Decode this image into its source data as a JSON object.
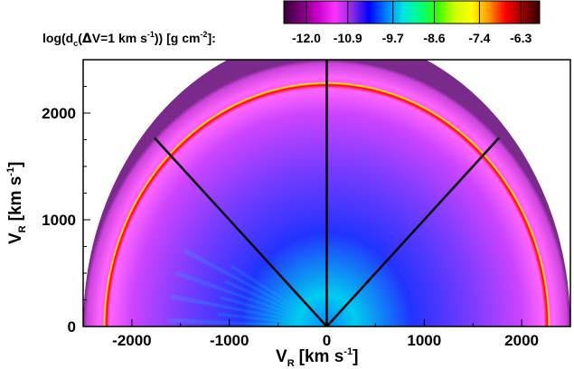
{
  "chart_data": {
    "type": "heatmap",
    "title": "",
    "colorbar": {
      "label_parts": {
        "a": "log(d",
        "sub_c": "c",
        "b": "(",
        "delta": "Δ",
        "c": "V=1 km s",
        "sup1": "-1",
        "d": ")) [g cm",
        "sup2": "-2",
        "e": "]:"
      },
      "ticks": [
        "-12.0",
        "-10.9",
        "-9.7",
        "-8.6",
        "-7.4",
        "-6.3"
      ],
      "range": [
        -12.6,
        -5.8
      ],
      "colors": [
        "#330033",
        "#7a007a",
        "#cc00cc",
        "#ff33ff",
        "#8a2be2",
        "#0000ff",
        "#0080ff",
        "#00e5e5",
        "#00ff80",
        "#33ff00",
        "#ccff00",
        "#ffff00",
        "#ff9900",
        "#ff0000",
        "#990000",
        "#330000"
      ]
    },
    "xaxis": {
      "label": "V",
      "label_sub": "R",
      "label_units": "[km s",
      "label_sup": "-1",
      "label_end": "]",
      "ticks": [
        -2000,
        -1000,
        0,
        1000,
        2000
      ],
      "tick_labels": [
        "-2000",
        "-1000",
        "0",
        "1000",
        "2000"
      ],
      "range": [
        -2500,
        2500
      ]
    },
    "yaxis": {
      "label": "V",
      "label_sub": "R",
      "label_units": "[km s",
      "label_sup": "-1",
      "label_end": "]",
      "ticks": [
        0,
        1000,
        2000
      ],
      "tick_labels": [
        "0",
        "1000",
        "2000"
      ],
      "range": [
        0,
        2500
      ]
    },
    "field": {
      "outer_radius": 2500,
      "shell_radius": 2280,
      "shell_value": -7.6,
      "background_value": -11.2,
      "outer_band_value": -11.8,
      "sector_lines_deg": [
        45,
        90,
        135
      ]
    }
  }
}
